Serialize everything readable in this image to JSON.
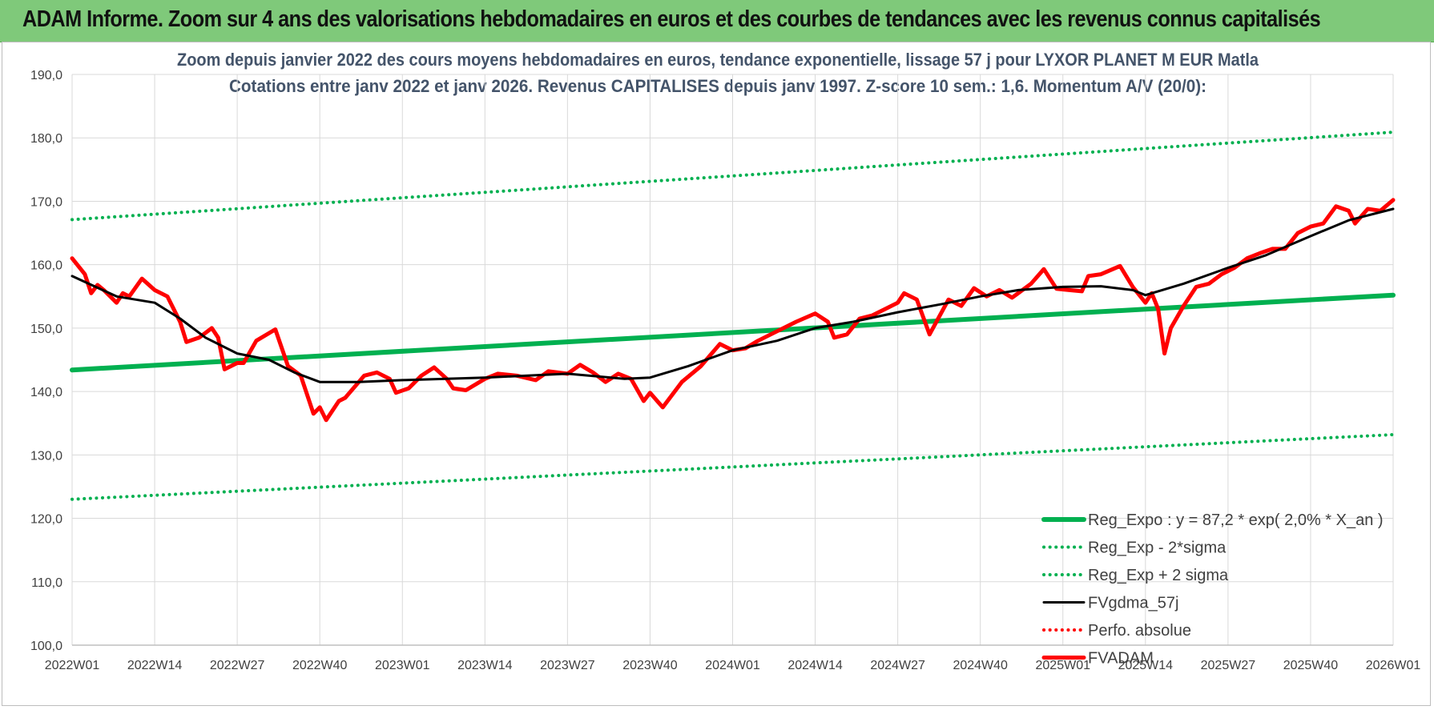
{
  "banner": {
    "title": "ADAM Informe. Zoom sur 4 ans des valorisations hebdomadaires en euros et des courbes de tendances avec les revenus connus capitalisés"
  },
  "colors": {
    "banner_bg": "#7fc97a",
    "reg_green": "#00b050",
    "fvgdma_black": "#000000",
    "fvadam_red": "#ff0000",
    "title_color": "#44546a"
  },
  "chart_data": {
    "type": "line",
    "title_line1": "Zoom depuis janvier 2022 des cours moyens hebdomadaires en euros, tendance exponentielle, lissage 57 j pour LYXOR PLANET M EUR Matla",
    "title_line2": "Cotations entre janv 2022 et janv 2026. Revenus CAPITALISES depuis janv 1997. Z-score 10 sem.: 1,6. Momentum A/V (20/0):",
    "ylim": [
      100,
      190
    ],
    "y_ticks": [
      "100,0",
      "110,0",
      "120,0",
      "130,0",
      "140,0",
      "150,0",
      "160,0",
      "170,0",
      "180,0",
      "190,0"
    ],
    "x_ticks": [
      "2022W01",
      "2022W14",
      "2022W27",
      "2022W40",
      "2023W01",
      "2023W14",
      "2023W27",
      "2023W40",
      "2024W01",
      "2024W14",
      "2024W27",
      "2024W40",
      "2025W01",
      "2025W14",
      "2025W27",
      "2025W40",
      "2026W01"
    ],
    "grid": "vertical and horizontal",
    "legend_position": "bottom-right",
    "series": [
      {
        "name": "Reg_Expo : y = 87,2 * exp( 2,0% *  X_an )",
        "style": "solid-thick",
        "color": "#00b050",
        "points": [
          [
            "2022W01",
            143.4
          ],
          [
            "2026W01",
            155.2
          ]
        ]
      },
      {
        "name": "Reg_Exp - 2*sigma",
        "style": "dotted",
        "color": "#00b050",
        "points": [
          [
            "2022W01",
            123.0
          ],
          [
            "2026W01",
            133.2
          ]
        ]
      },
      {
        "name": "Reg_Exp + 2 sigma",
        "style": "dotted",
        "color": "#00b050",
        "points": [
          [
            "2022W01",
            167.1
          ],
          [
            "2026W01",
            180.9
          ]
        ]
      },
      {
        "name": "FVgdma_57j",
        "style": "solid",
        "color": "#000000",
        "points": [
          [
            "2022W01",
            158.2
          ],
          [
            "2022W08",
            155.0
          ],
          [
            "2022W14",
            154.0
          ],
          [
            "2022W18",
            151.5
          ],
          [
            "2022W22",
            148.5
          ],
          [
            "2022W27",
            146.0
          ],
          [
            "2022W32",
            145.0
          ],
          [
            "2022W36",
            143.0
          ],
          [
            "2022W40",
            141.5
          ],
          [
            "2022W46",
            141.5
          ],
          [
            "2023W01",
            141.8
          ],
          [
            "2023W14",
            142.2
          ],
          [
            "2023W27",
            142.8
          ],
          [
            "2023W36",
            142.0
          ],
          [
            "2023W40",
            142.2
          ],
          [
            "2023W46",
            144.0
          ],
          [
            "2024W01",
            146.5
          ],
          [
            "2024W08",
            148.0
          ],
          [
            "2024W14",
            150.0
          ],
          [
            "2024W20",
            151.0
          ],
          [
            "2024W27",
            152.5
          ],
          [
            "2024W34",
            153.8
          ],
          [
            "2024W40",
            155.0
          ],
          [
            "2024W46",
            156.0
          ],
          [
            "2025W01",
            156.5
          ],
          [
            "2025W07",
            156.6
          ],
          [
            "2025W12",
            156.0
          ],
          [
            "2025W14",
            155.2
          ],
          [
            "2025W20",
            157.0
          ],
          [
            "2025W27",
            159.5
          ],
          [
            "2025W33",
            161.5
          ],
          [
            "2025W40",
            164.5
          ],
          [
            "2025W46",
            167.0
          ],
          [
            "2026W01",
            168.8
          ]
        ]
      },
      {
        "name": "Perfo. absolue",
        "style": "dotted",
        "color": "#ff0000",
        "points": []
      },
      {
        "name": "FVADAM",
        "style": "solid-thick",
        "color": "#ff0000",
        "points": [
          [
            "2022W01",
            161.0
          ],
          [
            "2022W03",
            158.5
          ],
          [
            "2022W04",
            155.5
          ],
          [
            "2022W05",
            156.8
          ],
          [
            "2022W06",
            156.0
          ],
          [
            "2022W08",
            154.0
          ],
          [
            "2022W09",
            155.5
          ],
          [
            "2022W10",
            155.0
          ],
          [
            "2022W12",
            157.8
          ],
          [
            "2022W14",
            156.0
          ],
          [
            "2022W16",
            155.0
          ],
          [
            "2022W18",
            151.0
          ],
          [
            "2022W19",
            147.8
          ],
          [
            "2022W21",
            148.5
          ],
          [
            "2022W23",
            150.0
          ],
          [
            "2022W24",
            148.5
          ],
          [
            "2022W25",
            143.5
          ],
          [
            "2022W27",
            144.5
          ],
          [
            "2022W28",
            144.5
          ],
          [
            "2022W30",
            148.0
          ],
          [
            "2022W33",
            149.8
          ],
          [
            "2022W35",
            144.0
          ],
          [
            "2022W37",
            142.5
          ],
          [
            "2022W39",
            136.5
          ],
          [
            "2022W40",
            137.5
          ],
          [
            "2022W41",
            135.5
          ],
          [
            "2022W43",
            138.5
          ],
          [
            "2022W44",
            139.0
          ],
          [
            "2022W47",
            142.5
          ],
          [
            "2022W49",
            143.0
          ],
          [
            "2022W51",
            142.0
          ],
          [
            "2022W52",
            139.8
          ],
          [
            "2023W02",
            140.5
          ],
          [
            "2023W04",
            142.5
          ],
          [
            "2023W06",
            143.8
          ],
          [
            "2023W08",
            142.0
          ],
          [
            "2023W09",
            140.5
          ],
          [
            "2023W11",
            140.2
          ],
          [
            "2023W14",
            142.0
          ],
          [
            "2023W16",
            142.8
          ],
          [
            "2023W19",
            142.5
          ],
          [
            "2023W22",
            141.8
          ],
          [
            "2023W24",
            143.2
          ],
          [
            "2023W27",
            142.8
          ],
          [
            "2023W29",
            144.2
          ],
          [
            "2023W31",
            143.0
          ],
          [
            "2023W33",
            141.5
          ],
          [
            "2023W35",
            142.8
          ],
          [
            "2023W37",
            142.0
          ],
          [
            "2023W39",
            138.5
          ],
          [
            "2023W40",
            139.8
          ],
          [
            "2023W42",
            137.5
          ],
          [
            "2023W45",
            141.5
          ],
          [
            "2023W48",
            144.0
          ],
          [
            "2023W51",
            147.5
          ],
          [
            "2024W01",
            146.5
          ],
          [
            "2024W03",
            146.8
          ],
          [
            "2024W05",
            148.0
          ],
          [
            "2024W08",
            149.5
          ],
          [
            "2024W11",
            151.0
          ],
          [
            "2024W14",
            152.3
          ],
          [
            "2024W16",
            151.0
          ],
          [
            "2024W17",
            148.5
          ],
          [
            "2024W19",
            149.0
          ],
          [
            "2024W21",
            151.5
          ],
          [
            "2024W23",
            152.0
          ],
          [
            "2024W25",
            153.0
          ],
          [
            "2024W27",
            154.0
          ],
          [
            "2024W28",
            155.5
          ],
          [
            "2024W30",
            154.5
          ],
          [
            "2024W32",
            149.0
          ],
          [
            "2024W35",
            154.5
          ],
          [
            "2024W37",
            153.5
          ],
          [
            "2024W39",
            156.3
          ],
          [
            "2024W41",
            155.0
          ],
          [
            "2024W43",
            156.0
          ],
          [
            "2024W45",
            154.8
          ],
          [
            "2024W48",
            157.0
          ],
          [
            "2024W50",
            159.3
          ],
          [
            "2024W52",
            156.2
          ],
          [
            "2025W02",
            156.0
          ],
          [
            "2025W04",
            155.8
          ],
          [
            "2025W05",
            158.2
          ],
          [
            "2025W07",
            158.5
          ],
          [
            "2025W10",
            159.8
          ],
          [
            "2025W12",
            156.5
          ],
          [
            "2025W14",
            154.0
          ],
          [
            "2025W15",
            155.5
          ],
          [
            "2025W16",
            153.0
          ],
          [
            "2025W17",
            146.0
          ],
          [
            "2025W18",
            150.0
          ],
          [
            "2025W20",
            153.5
          ],
          [
            "2025W22",
            156.5
          ],
          [
            "2025W24",
            157.0
          ],
          [
            "2025W26",
            158.5
          ],
          [
            "2025W28",
            159.5
          ],
          [
            "2025W30",
            161.0
          ],
          [
            "2025W32",
            161.8
          ],
          [
            "2025W34",
            162.5
          ],
          [
            "2025W36",
            162.5
          ],
          [
            "2025W38",
            165.0
          ],
          [
            "2025W40",
            166.0
          ],
          [
            "2025W42",
            166.5
          ],
          [
            "2025W44",
            169.2
          ],
          [
            "2025W46",
            168.5
          ],
          [
            "2025W47",
            166.5
          ],
          [
            "2025W49",
            168.8
          ],
          [
            "2025W51",
            168.5
          ],
          [
            "2026W01",
            170.2
          ]
        ]
      }
    ]
  }
}
